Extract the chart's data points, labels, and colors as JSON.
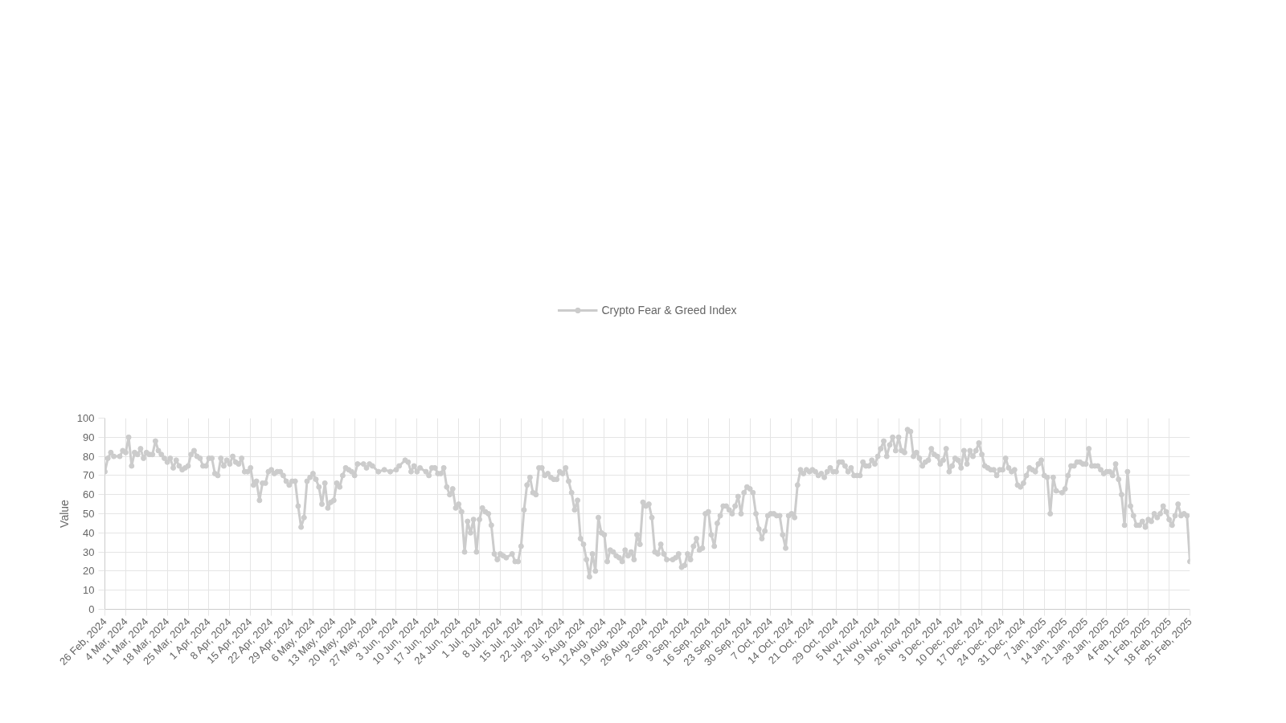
{
  "chart_data": {
    "type": "line",
    "ylabel": "Value",
    "legend": "top",
    "grid": true,
    "marker": "circle",
    "line_style": "solid",
    "xlim": [
      "2024-02-26",
      "2025-02-25"
    ],
    "ylim": [
      0,
      100
    ],
    "yticks": [
      0,
      10,
      20,
      30,
      40,
      50,
      60,
      70,
      80,
      90,
      100
    ],
    "xticks": [
      {
        "value": "2024-02-26",
        "label": "26 Feb, 2024"
      },
      {
        "value": "2024-03-04",
        "label": "4 Mar, 2024"
      },
      {
        "value": "2024-03-11",
        "label": "11 Mar, 2024"
      },
      {
        "value": "2024-03-18",
        "label": "18 Mar, 2024"
      },
      {
        "value": "2024-03-25",
        "label": "25 Mar, 2024"
      },
      {
        "value": "2024-04-01",
        "label": "1 Apr, 2024"
      },
      {
        "value": "2024-04-08",
        "label": "8 Apr, 2024"
      },
      {
        "value": "2024-04-15",
        "label": "15 Apr, 2024"
      },
      {
        "value": "2024-04-22",
        "label": "22 Apr, 2024"
      },
      {
        "value": "2024-04-29",
        "label": "29 Apr, 2024"
      },
      {
        "value": "2024-05-06",
        "label": "6 May, 2024"
      },
      {
        "value": "2024-05-13",
        "label": "13 May, 2024"
      },
      {
        "value": "2024-05-20",
        "label": "20 May, 2024"
      },
      {
        "value": "2024-05-27",
        "label": "27 May, 2024"
      },
      {
        "value": "2024-06-03",
        "label": "3 Jun, 2024"
      },
      {
        "value": "2024-06-10",
        "label": "10 Jun, 2024"
      },
      {
        "value": "2024-06-17",
        "label": "17 Jun, 2024"
      },
      {
        "value": "2024-06-24",
        "label": "24 Jun, 2024"
      },
      {
        "value": "2024-07-01",
        "label": "1 Jul, 2024"
      },
      {
        "value": "2024-07-08",
        "label": "8 Jul, 2024"
      },
      {
        "value": "2024-07-15",
        "label": "15 Jul, 2024"
      },
      {
        "value": "2024-07-22",
        "label": "22 Jul, 2024"
      },
      {
        "value": "2024-07-29",
        "label": "29 Jul, 2024"
      },
      {
        "value": "2024-08-05",
        "label": "5 Aug, 2024"
      },
      {
        "value": "2024-08-12",
        "label": "12 Aug, 2024"
      },
      {
        "value": "2024-08-19",
        "label": "19 Aug, 2024"
      },
      {
        "value": "2024-08-26",
        "label": "26 Aug, 2024"
      },
      {
        "value": "2024-09-02",
        "label": "2 Sep, 2024"
      },
      {
        "value": "2024-09-09",
        "label": "9 Sep, 2024"
      },
      {
        "value": "2024-09-16",
        "label": "16 Sep, 2024"
      },
      {
        "value": "2024-09-23",
        "label": "23 Sep, 2024"
      },
      {
        "value": "2024-09-30",
        "label": "30 Sep, 2024"
      },
      {
        "value": "2024-10-07",
        "label": "7 Oct, 2024"
      },
      {
        "value": "2024-10-14",
        "label": "14 Oct, 2024"
      },
      {
        "value": "2024-10-21",
        "label": "21 Oct, 2024"
      },
      {
        "value": "2024-10-29",
        "label": "29 Oct, 2024"
      },
      {
        "value": "2024-11-05",
        "label": "5 Nov, 2024"
      },
      {
        "value": "2024-11-12",
        "label": "12 Nov, 2024"
      },
      {
        "value": "2024-11-19",
        "label": "19 Nov, 2024"
      },
      {
        "value": "2024-11-26",
        "label": "26 Nov, 2024"
      },
      {
        "value": "2024-12-03",
        "label": "3 Dec, 2024"
      },
      {
        "value": "2024-12-10",
        "label": "10 Dec, 2024"
      },
      {
        "value": "2024-12-17",
        "label": "17 Dec, 2024"
      },
      {
        "value": "2024-12-24",
        "label": "24 Dec, 2024"
      },
      {
        "value": "2024-12-31",
        "label": "31 Dec, 2024"
      },
      {
        "value": "2025-01-07",
        "label": "7 Jan, 2025"
      },
      {
        "value": "2025-01-14",
        "label": "14 Jan, 2025"
      },
      {
        "value": "2025-01-21",
        "label": "21 Jan, 2025"
      },
      {
        "value": "2025-01-28",
        "label": "28 Jan, 2025"
      },
      {
        "value": "2025-02-04",
        "label": "4 Feb, 2025"
      },
      {
        "value": "2025-02-11",
        "label": "11 Feb, 2025"
      },
      {
        "value": "2025-02-18",
        "label": "18 Feb, 2025"
      },
      {
        "value": "2025-02-25",
        "label": "25 Feb, 2025"
      }
    ],
    "series": [
      {
        "name": "Crypto Fear & Greed Index",
        "color": "#cccccc",
        "x": [
          "2024-02-26",
          "2024-02-27",
          "2024-02-28",
          "2024-02-29",
          "2024-03-02",
          "2024-03-03",
          "2024-03-04",
          "2024-03-05",
          "2024-03-06",
          "2024-03-07",
          "2024-03-08",
          "2024-03-09",
          "2024-03-10",
          "2024-03-11",
          "2024-03-12",
          "2024-03-13",
          "2024-03-14",
          "2024-03-15",
          "2024-03-16",
          "2024-03-17",
          "2024-03-18",
          "2024-03-19",
          "2024-03-20",
          "2024-03-21",
          "2024-03-22",
          "2024-03-23",
          "2024-03-24",
          "2024-03-25",
          "2024-03-26",
          "2024-03-27",
          "2024-03-28",
          "2024-03-29",
          "2024-03-30",
          "2024-03-31",
          "2024-04-01",
          "2024-04-02",
          "2024-04-03",
          "2024-04-04",
          "2024-04-05",
          "2024-04-06",
          "2024-04-07",
          "2024-04-08",
          "2024-04-09",
          "2024-04-10",
          "2024-04-11",
          "2024-04-12",
          "2024-04-13",
          "2024-04-14",
          "2024-04-15",
          "2024-04-16",
          "2024-04-17",
          "2024-04-18",
          "2024-04-19",
          "2024-04-20",
          "2024-04-21",
          "2024-04-22",
          "2024-04-23",
          "2024-04-24",
          "2024-04-25",
          "2024-04-26",
          "2024-04-27",
          "2024-04-28",
          "2024-04-29",
          "2024-04-30",
          "2024-05-01",
          "2024-05-02",
          "2024-05-03",
          "2024-05-04",
          "2024-05-05",
          "2024-05-06",
          "2024-05-07",
          "2024-05-08",
          "2024-05-09",
          "2024-05-10",
          "2024-05-11",
          "2024-05-12",
          "2024-05-13",
          "2024-05-14",
          "2024-05-15",
          "2024-05-16",
          "2024-05-17",
          "2024-05-18",
          "2024-05-19",
          "2024-05-20",
          "2024-05-21",
          "2024-05-23",
          "2024-05-24",
          "2024-05-25",
          "2024-05-26",
          "2024-05-28",
          "2024-05-30",
          "2024-06-01",
          "2024-06-03",
          "2024-06-04",
          "2024-06-06",
          "2024-06-07",
          "2024-06-08",
          "2024-06-09",
          "2024-06-10",
          "2024-06-11",
          "2024-06-13",
          "2024-06-14",
          "2024-06-15",
          "2024-06-16",
          "2024-06-17",
          "2024-06-18",
          "2024-06-19",
          "2024-06-20",
          "2024-06-21",
          "2024-06-22",
          "2024-06-23",
          "2024-06-24",
          "2024-06-25",
          "2024-06-26",
          "2024-06-27",
          "2024-06-28",
          "2024-06-29",
          "2024-06-30",
          "2024-07-01",
          "2024-07-02",
          "2024-07-03",
          "2024-07-04",
          "2024-07-05",
          "2024-07-06",
          "2024-07-07",
          "2024-07-08",
          "2024-07-09",
          "2024-07-10",
          "2024-07-12",
          "2024-07-13",
          "2024-07-14",
          "2024-07-15",
          "2024-07-16",
          "2024-07-17",
          "2024-07-18",
          "2024-07-19",
          "2024-07-20",
          "2024-07-21",
          "2024-07-22",
          "2024-07-23",
          "2024-07-24",
          "2024-07-25",
          "2024-07-26",
          "2024-07-27",
          "2024-07-28",
          "2024-07-29",
          "2024-07-30",
          "2024-07-31",
          "2024-08-01",
          "2024-08-02",
          "2024-08-03",
          "2024-08-04",
          "2024-08-05",
          "2024-08-06",
          "2024-08-07",
          "2024-08-08",
          "2024-08-09",
          "2024-08-10",
          "2024-08-11",
          "2024-08-12",
          "2024-08-13",
          "2024-08-14",
          "2024-08-15",
          "2024-08-16",
          "2024-08-17",
          "2024-08-18",
          "2024-08-19",
          "2024-08-20",
          "2024-08-21",
          "2024-08-22",
          "2024-08-23",
          "2024-08-24",
          "2024-08-25",
          "2024-08-26",
          "2024-08-27",
          "2024-08-28",
          "2024-08-29",
          "2024-08-30",
          "2024-08-31",
          "2024-09-01",
          "2024-09-02",
          "2024-09-04",
          "2024-09-05",
          "2024-09-06",
          "2024-09-07",
          "2024-09-08",
          "2024-09-09",
          "2024-09-10",
          "2024-09-11",
          "2024-09-12",
          "2024-09-13",
          "2024-09-14",
          "2024-09-15",
          "2024-09-16",
          "2024-09-17",
          "2024-09-18",
          "2024-09-19",
          "2024-09-20",
          "2024-09-21",
          "2024-09-22",
          "2024-09-23",
          "2024-09-24",
          "2024-09-25",
          "2024-09-26",
          "2024-09-27",
          "2024-09-28",
          "2024-09-29",
          "2024-09-30",
          "2024-10-01",
          "2024-10-02",
          "2024-10-03",
          "2024-10-04",
          "2024-10-05",
          "2024-10-06",
          "2024-10-07",
          "2024-10-08",
          "2024-10-09",
          "2024-10-10",
          "2024-10-11",
          "2024-10-12",
          "2024-10-13",
          "2024-10-14",
          "2024-10-15",
          "2024-10-16",
          "2024-10-17",
          "2024-10-18",
          "2024-10-19",
          "2024-10-20",
          "2024-10-21",
          "2024-10-22",
          "2024-10-23",
          "2024-10-24",
          "2024-10-25",
          "2024-10-26",
          "2024-10-27",
          "2024-10-28",
          "2024-10-29",
          "2024-10-30",
          "2024-10-31",
          "2024-11-01",
          "2024-11-02",
          "2024-11-03",
          "2024-11-04",
          "2024-11-05",
          "2024-11-06",
          "2024-11-07",
          "2024-11-08",
          "2024-11-09",
          "2024-11-10",
          "2024-11-11",
          "2024-11-12",
          "2024-11-13",
          "2024-11-14",
          "2024-11-15",
          "2024-11-16",
          "2024-11-17",
          "2024-11-18",
          "2024-11-19",
          "2024-11-20",
          "2024-11-21",
          "2024-11-22",
          "2024-11-23",
          "2024-11-24",
          "2024-11-25",
          "2024-11-26",
          "2024-11-27",
          "2024-11-28",
          "2024-11-29",
          "2024-11-30",
          "2024-12-01",
          "2024-12-02",
          "2024-12-03",
          "2024-12-04",
          "2024-12-05",
          "2024-12-06",
          "2024-12-07",
          "2024-12-08",
          "2024-12-09",
          "2024-12-10",
          "2024-12-11",
          "2024-12-12",
          "2024-12-13",
          "2024-12-14",
          "2024-12-15",
          "2024-12-16",
          "2024-12-17",
          "2024-12-18",
          "2024-12-19",
          "2024-12-20",
          "2024-12-21",
          "2024-12-22",
          "2024-12-23",
          "2024-12-24",
          "2024-12-25",
          "2024-12-26",
          "2024-12-27",
          "2024-12-28",
          "2024-12-29",
          "2024-12-30",
          "2024-12-31",
          "2025-01-01",
          "2025-01-02",
          "2025-01-03",
          "2025-01-04",
          "2025-01-05",
          "2025-01-06",
          "2025-01-07",
          "2025-01-08",
          "2025-01-09",
          "2025-01-10",
          "2025-01-11",
          "2025-01-13",
          "2025-01-14",
          "2025-01-15",
          "2025-01-16",
          "2025-01-17",
          "2025-01-18",
          "2025-01-19",
          "2025-01-20",
          "2025-01-21",
          "2025-01-22",
          "2025-01-23",
          "2025-01-24",
          "2025-01-25",
          "2025-01-26",
          "2025-01-27",
          "2025-01-28",
          "2025-01-29",
          "2025-01-30",
          "2025-01-31",
          "2025-02-01",
          "2025-02-02",
          "2025-02-03",
          "2025-02-04",
          "2025-02-05",
          "2025-02-06",
          "2025-02-07",
          "2025-02-08",
          "2025-02-09",
          "2025-02-10",
          "2025-02-11",
          "2025-02-12",
          "2025-02-13",
          "2025-02-14",
          "2025-02-15",
          "2025-02-16",
          "2025-02-17",
          "2025-02-18",
          "2025-02-19",
          "2025-02-20",
          "2025-02-21",
          "2025-02-22",
          "2025-02-23",
          "2025-02-24",
          "2025-02-25"
        ],
        "values": [
          72,
          79,
          82,
          80,
          80,
          83,
          82,
          90,
          75,
          82,
          81,
          84,
          79,
          82,
          81,
          81,
          88,
          83,
          81,
          79,
          77,
          79,
          74,
          78,
          75,
          73,
          74,
          75,
          81,
          83,
          80,
          79,
          75,
          75,
          79,
          79,
          71,
          70,
          79,
          75,
          78,
          76,
          80,
          77,
          76,
          79,
          72,
          72,
          74,
          65,
          67,
          57,
          66,
          66,
          72,
          73,
          71,
          72,
          72,
          70,
          67,
          65,
          67,
          67,
          54,
          43,
          48,
          67,
          69,
          71,
          68,
          64,
          55,
          66,
          53,
          56,
          57,
          66,
          64,
          70,
          74,
          73,
          72,
          70,
          76,
          76,
          74,
          76,
          75,
          72,
          73,
          72,
          73,
          75,
          78,
          77,
          72,
          75,
          72,
          74,
          72,
          70,
          74,
          74,
          71,
          71,
          74,
          64,
          60,
          63,
          53,
          55,
          51,
          30,
          46,
          40,
          47,
          30,
          47,
          53,
          51,
          50,
          44,
          29,
          26,
          29,
          28,
          27,
          29,
          25,
          25,
          33,
          52,
          65,
          69,
          61,
          60,
          74,
          74,
          70,
          71,
          69,
          68,
          68,
          72,
          71,
          74,
          67,
          61,
          52,
          57,
          37,
          34,
          26,
          17,
          29,
          20,
          48,
          40,
          39,
          25,
          31,
          30,
          28,
          27,
          25,
          31,
          28,
          30,
          26,
          39,
          34,
          56,
          54,
          55,
          48,
          30,
          29,
          34,
          29,
          26,
          26,
          27,
          29,
          22,
          23,
          29,
          26,
          33,
          37,
          31,
          32,
          50,
          51,
          39,
          33,
          45,
          49,
          54,
          54,
          52,
          50,
          54,
          59,
          50,
          61,
          64,
          63,
          61,
          50,
          42,
          37,
          41,
          49,
          50,
          50,
          49,
          49,
          39,
          32,
          49,
          50,
          48,
          65,
          73,
          71,
          73,
          72,
          73,
          72,
          70,
          71,
          69,
          72,
          74,
          72,
          72,
          77,
          77,
          75,
          72,
          74,
          70,
          70,
          70,
          77,
          75,
          75,
          78,
          76,
          80,
          84,
          88,
          80,
          86,
          90,
          83,
          90,
          83,
          82,
          94,
          93,
          80,
          82,
          79,
          75,
          77,
          78,
          84,
          81,
          80,
          76,
          78,
          84,
          72,
          75,
          79,
          78,
          74,
          83,
          76,
          83,
          80,
          83,
          87,
          81,
          75,
          74,
          73,
          73,
          70,
          73,
          73,
          79,
          74,
          72,
          73,
          65,
          64,
          66,
          70,
          74,
          73,
          72,
          76,
          78,
          70,
          69,
          50,
          69,
          62,
          61,
          63,
          70,
          75,
          75,
          77,
          77,
          76,
          76,
          84,
          75,
          75,
          75,
          73,
          71,
          72,
          72,
          70,
          76,
          68,
          60,
          44,
          72,
          54,
          49,
          44,
          44,
          46,
          43,
          47,
          46,
          50,
          48,
          50,
          54,
          51,
          47,
          44,
          49,
          55,
          49,
          50,
          49,
          25
        ]
      }
    ]
  }
}
